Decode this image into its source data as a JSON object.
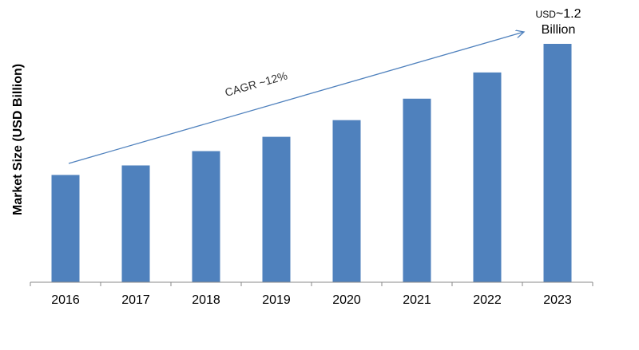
{
  "chart_data": {
    "type": "bar",
    "categories": [
      "2016",
      "2017",
      "2018",
      "2019",
      "2020",
      "2021",
      "2022",
      "2023"
    ],
    "values": [
      0.45,
      0.49,
      0.55,
      0.61,
      0.68,
      0.77,
      0.88,
      1.0
    ],
    "ylabel": "Market Size (USD Billion)",
    "xlabel": "",
    "title": "",
    "ylim": [
      0,
      1.0
    ],
    "grid": false,
    "legend": "none",
    "bar_color": "#4f81bd",
    "annotations": {
      "cagr": "CAGR ~12%",
      "end_value_prefix": "USD",
      "end_value_number": "~1.2",
      "end_value_unit": "Billion"
    }
  }
}
